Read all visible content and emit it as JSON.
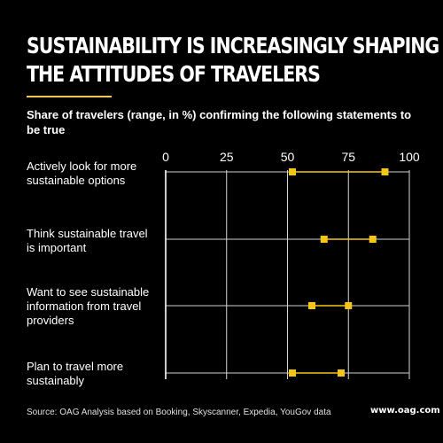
{
  "header": {
    "title_line1": "SUSTAINABILITY IS INCREASINGLY SHAPING",
    "title_line2": "THE ATTITUDES OF TRAVELERS",
    "subtitle": "Share of travelers (range, in %) confirming the following statements to be true"
  },
  "labels": [
    [
      "Actively look for more",
      "sustainable options"
    ],
    [
      "Think sustainable travel",
      "is important"
    ],
    [
      "Want to see sustainable",
      "information from travel",
      "providers"
    ],
    [
      "Plan to travel more",
      "sustainably"
    ]
  ],
  "colors": {
    "background": "#000000",
    "text": "#ffffff",
    "accent": "#f2c94c",
    "marker": "#f5c518"
  },
  "chart_data": {
    "type": "range",
    "title": "Share of travelers (range, in %) confirming the following statements to be true",
    "categories": [
      "Actively look for more sustainable options",
      "Think sustainable travel is important",
      "Want to see sustainable information from travel providers",
      "Plan to travel more sustainably"
    ],
    "low": [
      52,
      65,
      60,
      52
    ],
    "high": [
      90,
      85,
      75,
      72
    ],
    "xlim": [
      0,
      100
    ],
    "xticks": [
      "0",
      "25",
      "50",
      "75",
      "100"
    ],
    "grid": true,
    "legend": "none"
  },
  "footer": {
    "source": "Source: OAG Analysis based on Booking, Skyscanner, Expedia, YouGov data",
    "logo": "www.oag.com"
  }
}
